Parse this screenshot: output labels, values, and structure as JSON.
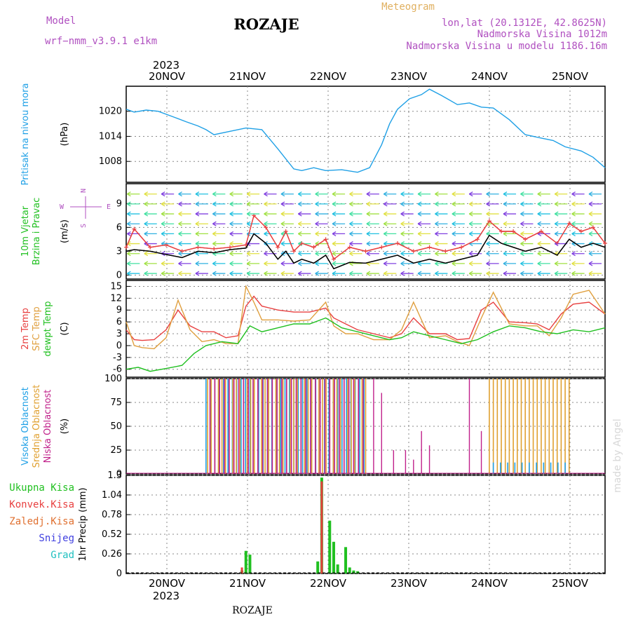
{
  "header": {
    "model_label": "Model",
    "model_name": "wrf−nmm_v3.9.1  e1km",
    "title": "ROZAJE",
    "meteogram_label": "Meteogram",
    "lonlat": "lon,lat (20.1312E, 42.8625N)",
    "elevation": "Nadmorska Visina 1012m",
    "model_elevation": "Nadmorska Visina u modelu 1186.16m",
    "year_top": "2023",
    "year_bottom": "2023",
    "footer_station": "ROZAJE",
    "watermark": "made by Angel"
  },
  "colors": {
    "pressure": "#1fa0e6",
    "wind_speed": "#000000",
    "wind_gust": "#e84040",
    "temp_2m": "#e84040",
    "temp_sfc": "#e0a040",
    "dewpoint": "#20c020",
    "cloud_high": "#1fa0e6",
    "cloud_mid": "#e0a030",
    "cloud_low": "#c0208a",
    "precip_total": "#20c020",
    "precip_conv": "#e84040",
    "precip_frozen": "#e07030",
    "snow": "#4040e0",
    "graupel": "#20c0c0",
    "model_label": "#b050c0",
    "meteogram_label": "#e0b060",
    "grid": "#888888"
  },
  "wind_compass": {
    "n": "N",
    "w": "W",
    "e": "E",
    "s": "S"
  },
  "chart_data": [
    {
      "type": "line",
      "panel": "pressure",
      "ylabel_lines": [
        "Pritisak na nivou mora"
      ],
      "unit": "(hPa)",
      "yticks": [
        1008,
        1014,
        1020
      ],
      "ylim": [
        1003,
        1026
      ],
      "x_day_ticks": [
        "20NOV",
        "21NOV",
        "22NOV",
        "23NOV",
        "24NOV",
        "25NOV"
      ],
      "x_range_days": [
        0,
        6
      ],
      "grid": true,
      "series": [
        {
          "color_key": "pressure",
          "x": [
            0,
            0.1,
            0.25,
            0.4,
            0.6,
            0.75,
            0.9,
            1.0,
            1.1,
            1.3,
            1.5,
            1.7,
            1.9,
            2.1,
            2.2,
            2.35,
            2.5,
            2.7,
            2.9,
            3.05,
            3.2,
            3.3,
            3.4,
            3.55,
            3.7,
            3.8,
            3.95,
            4.15,
            4.3,
            4.45,
            4.6,
            4.8,
            5.0,
            5.2,
            5.35,
            5.5,
            5.7,
            5.85,
            6.0
          ],
          "values": [
            1020.5,
            1019.8,
            1020.3,
            1020.0,
            1018.6,
            1017.5,
            1016.5,
            1015.6,
            1014.4,
            1015.2,
            1016.0,
            1015.6,
            1011.0,
            1006.2,
            1005.8,
            1006.5,
            1005.8,
            1006.0,
            1005.4,
            1006.5,
            1012.0,
            1017.0,
            1020.5,
            1023.0,
            1024.0,
            1025.3,
            1023.8,
            1021.6,
            1022.0,
            1021.0,
            1020.8,
            1018.0,
            1014.4,
            1013.6,
            1013.0,
            1011.5,
            1010.5,
            1009.0,
            1006.5
          ]
        }
      ]
    },
    {
      "type": "line",
      "panel": "wind",
      "ylabel_lines": [
        "10m Vjetar",
        "Brzina i Pravac"
      ],
      "unit": "(m/s)",
      "yticks": [
        0,
        3,
        6,
        9
      ],
      "ylim": [
        -0.5,
        11.5
      ],
      "grid": true,
      "series": [
        {
          "name": "speed",
          "color_key": "wind_speed",
          "x": [
            0,
            0.1,
            0.3,
            0.5,
            0.7,
            0.9,
            1.1,
            1.3,
            1.5,
            1.6,
            1.75,
            1.9,
            2.0,
            2.1,
            2.2,
            2.35,
            2.5,
            2.6,
            2.8,
            3.0,
            3.2,
            3.4,
            3.6,
            3.8,
            4.0,
            4.2,
            4.4,
            4.55,
            4.7,
            4.85,
            5.0,
            5.2,
            5.4,
            5.55,
            5.7,
            5.85,
            6.0
          ],
          "values": [
            3.0,
            3.2,
            3.0,
            2.6,
            2.2,
            3.0,
            2.8,
            3.2,
            3.4,
            5.2,
            4.0,
            2.0,
            3.0,
            1.5,
            2.0,
            1.5,
            2.5,
            0.8,
            1.6,
            1.5,
            2.0,
            2.5,
            1.5,
            2.0,
            1.5,
            2.0,
            2.5,
            5.0,
            4.0,
            3.5,
            3.0,
            3.5,
            2.5,
            4.5,
            3.5,
            4.0,
            3.5
          ]
        },
        {
          "name": "gust",
          "color_key": "wind_gust",
          "x": [
            0,
            0.1,
            0.3,
            0.5,
            0.7,
            0.9,
            1.1,
            1.3,
            1.5,
            1.6,
            1.75,
            1.9,
            2.0,
            2.1,
            2.2,
            2.35,
            2.5,
            2.6,
            2.8,
            3.0,
            3.2,
            3.4,
            3.6,
            3.8,
            4.0,
            4.2,
            4.4,
            4.55,
            4.7,
            4.85,
            5.0,
            5.2,
            5.4,
            5.55,
            5.7,
            5.85,
            6.0
          ],
          "values": [
            3.5,
            5.8,
            3.5,
            3.8,
            3.0,
            3.5,
            3.3,
            3.5,
            3.8,
            7.5,
            6.0,
            3.5,
            5.5,
            3.0,
            4.0,
            3.5,
            4.5,
            2.0,
            3.5,
            3.0,
            3.5,
            4.0,
            3.0,
            3.5,
            3.0,
            3.5,
            4.5,
            6.8,
            5.5,
            5.5,
            4.5,
            5.5,
            4.0,
            6.5,
            5.5,
            6.0,
            4.0
          ]
        }
      ]
    },
    {
      "type": "line",
      "panel": "temperature",
      "ylabel_lines": [
        "2m Temp",
        "SFC Temp",
        "dewpt Temp"
      ],
      "unit": "(C)",
      "yticks": [
        -6,
        -3,
        0,
        3,
        6,
        9,
        12,
        15
      ],
      "ylim": [
        -8,
        16.5
      ],
      "grid": true,
      "series": [
        {
          "name": "2m Temp",
          "color_key": "temp_2m",
          "x": [
            0,
            0.1,
            0.2,
            0.35,
            0.5,
            0.65,
            0.8,
            0.95,
            1.1,
            1.25,
            1.4,
            1.5,
            1.6,
            1.7,
            1.9,
            2.1,
            2.3,
            2.5,
            2.6,
            2.75,
            2.9,
            3.1,
            3.3,
            3.45,
            3.6,
            3.8,
            4.0,
            4.15,
            4.3,
            4.45,
            4.6,
            4.8,
            5.0,
            5.15,
            5.3,
            5.45,
            5.6,
            5.8,
            6.0
          ],
          "values": [
            4,
            1.5,
            1.3,
            1.5,
            4,
            9,
            5,
            3.5,
            3.5,
            2,
            2.5,
            10,
            12.5,
            10,
            9,
            8.5,
            8.5,
            9.5,
            7,
            5.5,
            4,
            3,
            2,
            3,
            7,
            3,
            3,
            1.5,
            1.8,
            9,
            11,
            6,
            5.8,
            5.5,
            4,
            8,
            10.5,
            11,
            8
          ]
        },
        {
          "name": "SFC Temp",
          "color_key": "temp_sfc",
          "x": [
            0,
            0.1,
            0.2,
            0.35,
            0.5,
            0.65,
            0.8,
            0.95,
            1.1,
            1.25,
            1.4,
            1.5,
            1.6,
            1.7,
            1.9,
            2.1,
            2.3,
            2.5,
            2.6,
            2.75,
            2.9,
            3.1,
            3.3,
            3.45,
            3.6,
            3.8,
            4.0,
            4.15,
            4.3,
            4.45,
            4.6,
            4.8,
            5.0,
            5.15,
            5.3,
            5.45,
            5.6,
            5.8,
            6.0
          ],
          "values": [
            6,
            0,
            -0.5,
            -0.8,
            2,
            11.5,
            4,
            1,
            1.5,
            0.5,
            0.5,
            15,
            11,
            6.5,
            6.5,
            6.2,
            6.5,
            11,
            5,
            3,
            3,
            1.5,
            1.5,
            4,
            11,
            2,
            2.5,
            1,
            0,
            7,
            13.5,
            5.5,
            5,
            5,
            2.5,
            7,
            13,
            14,
            8
          ]
        },
        {
          "name": "dewpt Temp",
          "color_key": "dewpoint",
          "x": [
            0,
            0.15,
            0.3,
            0.5,
            0.7,
            0.85,
            1.0,
            1.2,
            1.4,
            1.55,
            1.7,
            1.9,
            2.1,
            2.3,
            2.5,
            2.7,
            2.9,
            3.1,
            3.3,
            3.45,
            3.6,
            3.8,
            4.0,
            4.2,
            4.4,
            4.6,
            4.8,
            5.0,
            5.2,
            5.4,
            5.6,
            5.8,
            6.0
          ],
          "values": [
            -6,
            -5.5,
            -6.5,
            -5.8,
            -5,
            -2,
            0,
            1,
            0.5,
            5,
            3.5,
            4.5,
            5.5,
            5.5,
            7,
            4.5,
            3.5,
            2.5,
            1.5,
            2,
            3.5,
            2.5,
            1.5,
            0.5,
            1.5,
            3.5,
            5,
            4.5,
            3.5,
            3,
            4,
            3.5,
            4.5
          ]
        }
      ]
    },
    {
      "type": "bar",
      "panel": "cloud",
      "ylabel_lines": [
        "Visoka Oblacnost",
        "Srednja Oblacnost",
        "Niska Oblacnost"
      ],
      "unit": "(%)",
      "yticks": [
        0,
        25,
        50,
        75,
        100
      ],
      "ylim": [
        0,
        100
      ],
      "grid": true,
      "cloud_segments": [
        {
          "color_key": "cloud_high",
          "from": 1.0,
          "to": 3.0,
          "spacing": 0.055,
          "value": 100
        },
        {
          "color_key": "cloud_mid",
          "from": 1.02,
          "to": 3.0,
          "spacing": 0.045,
          "value": 100
        },
        {
          "color_key": "cloud_low",
          "from": 1.05,
          "to": 3.0,
          "spacing": 0.06,
          "value": 100
        },
        {
          "color_key": "cloud_mid",
          "from": 4.55,
          "to": 5.55,
          "spacing": 0.05,
          "value": 100
        },
        {
          "color_key": "cloud_high",
          "from": 4.6,
          "to": 5.5,
          "spacing": 0.09,
          "value": 12
        }
      ],
      "cloud_spikes": [
        {
          "color_key": "cloud_low",
          "x": [
            3.1,
            3.2,
            3.35,
            3.5,
            3.6,
            3.7,
            3.8,
            4.3,
            4.45
          ],
          "values": [
            100,
            85,
            25,
            25,
            15,
            45,
            30,
            100,
            45
          ]
        }
      ]
    },
    {
      "type": "bar",
      "panel": "precip",
      "ylabel_lines": [
        "Ukupna Kisa",
        "Konvek.Kisa",
        "Zaledj.Kisa",
        "Snijeg",
        "Grad"
      ],
      "unit": "1hr Precip (mm)",
      "yticks": [
        0,
        0.26,
        0.52,
        0.78,
        1.04,
        1.3
      ],
      "ylim": [
        0,
        1.3
      ],
      "grid": true,
      "series": [
        {
          "name": "Ukupna Kisa",
          "color_key": "precip_total",
          "x": [
            1.45,
            1.5,
            1.55,
            2.4,
            2.45,
            2.55,
            2.6,
            2.65,
            2.75,
            2.8,
            2.85,
            2.9
          ],
          "values": [
            0.04,
            0.3,
            0.25,
            0.16,
            1.27,
            0.7,
            0.42,
            0.12,
            0.35,
            0.08,
            0.04,
            0.03
          ]
        },
        {
          "name": "Konvek.Kisa",
          "color_key": "precip_conv",
          "x": [
            1.45,
            2.45
          ],
          "values": [
            0.08,
            1.22
          ]
        }
      ]
    }
  ]
}
